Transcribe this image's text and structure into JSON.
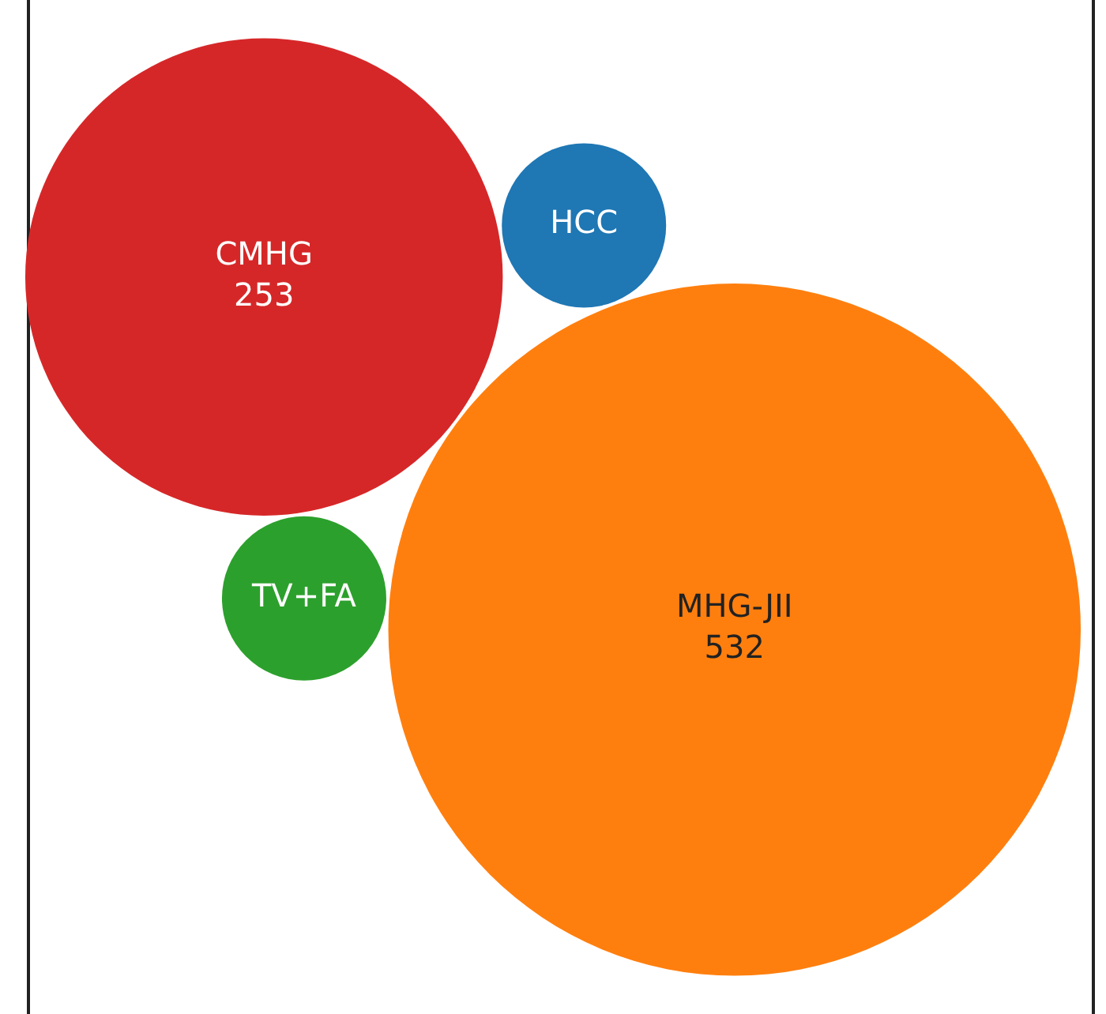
{
  "chart_data": {
    "type": "other",
    "categories": [
      "TV+FA",
      "HCC",
      "CMHG",
      "MHG-JII"
    ],
    "values": [
      null,
      null,
      253,
      532
    ],
    "value_labels": [
      null,
      null,
      "253",
      "532"
    ],
    "colors": [
      "#2ca02c",
      "#1f77b4",
      "#d62728",
      "#ff7f0e"
    ],
    "legend": false
  }
}
